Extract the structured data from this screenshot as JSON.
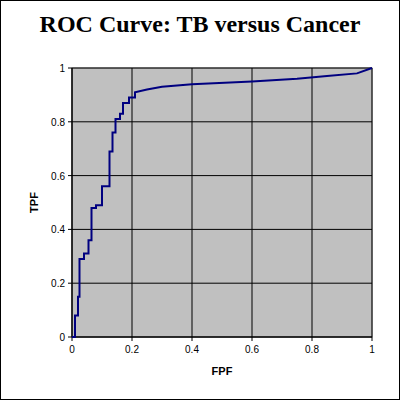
{
  "chart_data": {
    "type": "line",
    "title": "ROC Curve: TB versus Cancer",
    "x_label": "FPF",
    "y_label": "TPF",
    "x": [
      0,
      0.01,
      0.01,
      0.02,
      0.02,
      0.025,
      0.025,
      0.04,
      0.04,
      0.055,
      0.055,
      0.065,
      0.065,
      0.08,
      0.08,
      0.1,
      0.1,
      0.125,
      0.125,
      0.135,
      0.135,
      0.145,
      0.145,
      0.16,
      0.16,
      0.17,
      0.17,
      0.19,
      0.19,
      0.21,
      0.21,
      0.25,
      0.3,
      0.4,
      0.6,
      0.75,
      0.85,
      0.95,
      1
    ],
    "values": [
      0,
      0,
      0.08,
      0.08,
      0.15,
      0.15,
      0.29,
      0.29,
      0.31,
      0.31,
      0.36,
      0.36,
      0.48,
      0.48,
      0.49,
      0.49,
      0.56,
      0.56,
      0.69,
      0.69,
      0.76,
      0.76,
      0.81,
      0.81,
      0.83,
      0.83,
      0.87,
      0.87,
      0.89,
      0.89,
      0.91,
      0.92,
      0.93,
      0.94,
      0.95,
      0.96,
      0.97,
      0.98,
      1
    ],
    "color": "#000080",
    "line_style": "solid",
    "xlim": [
      0,
      1
    ],
    "ylim": [
      0,
      1
    ],
    "xticks": [
      0,
      0.2,
      0.4,
      0.6,
      0.8,
      1
    ],
    "yticks": [
      0,
      0.2,
      0.4,
      0.6,
      0.8,
      1
    ],
    "grid": true
  }
}
